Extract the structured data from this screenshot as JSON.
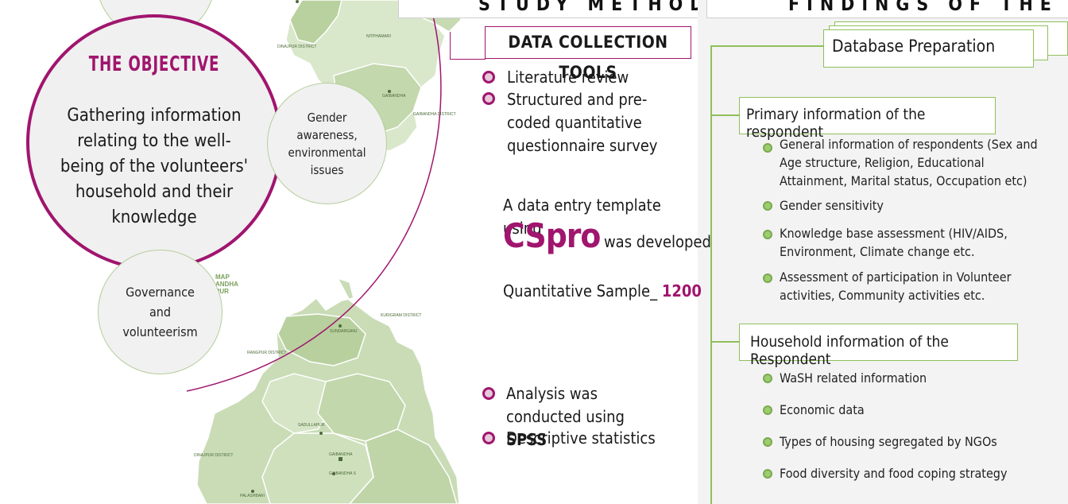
{
  "headers": {
    "methodology": "STUDY METHODOLOGY",
    "findings": "FINDINGS OF THE STUDY"
  },
  "objective": {
    "title": "THE  OBJECTIVE",
    "text": "Gathering information relating to the well-being of the volunteers' household and their knowledge"
  },
  "circles": {
    "gender": "Gender awareness, environmental issues",
    "governance": "Governance and volunteerism"
  },
  "map": {
    "labels": [
      "DINAJPUR DISTRICT",
      "NITPHAMARI",
      "GAIBANDHA",
      "GAIBANDHA DISTRICT",
      "KURIGRAM DISTRICT",
      "RANGPUR DISTRICT",
      "SUNDARGANJ",
      "SADULLAPUR",
      "DINAJPUR DISTRICT",
      "GAIBANDHA",
      "GAIBANDHA S",
      "PALASHBARI"
    ],
    "title_fragment": "MAP\nANDHA\nPUR"
  },
  "methodology": {
    "tools_title": "DATA  COLLECTION  TOOLS",
    "tools": [
      "Literature review",
      "Structured and pre-coded quantitative questionnaire survey"
    ],
    "template_line": "A data entry template using",
    "cspro": "CSpro",
    "developed": "was developed",
    "sample_label": "Quantitative  Sample_",
    "sample_value": "1200",
    "analysis_prefix": "Analysis was conducted using",
    "analysis_tool": "SPSS",
    "descriptive": "Descriptive statistics"
  },
  "findings": {
    "database": "Database Preparation",
    "primary_title": "Primary information  of the respondent",
    "primary_items": [
      "General information  of respondents (Sex and Age structure, Religion, Educational Attainment,  Marital status, Occupation etc)",
      "Gender sensitivity",
      "Knowledge base assessment (HIV/AIDS,  Environment, Climate change etc.",
      "Assessment of participation  in Volunteer activities, Community activities  etc."
    ],
    "household_title": "Household information  of the Respondent",
    "household_items": [
      "WaSH related information",
      "Economic data",
      "Types  of housing segregated by NGOs",
      "Food diversity  and food  coping strategy"
    ]
  },
  "colors": {
    "accent": "#a0156e",
    "green": "#8fc05b",
    "map_fill": "#c9dcb6"
  }
}
